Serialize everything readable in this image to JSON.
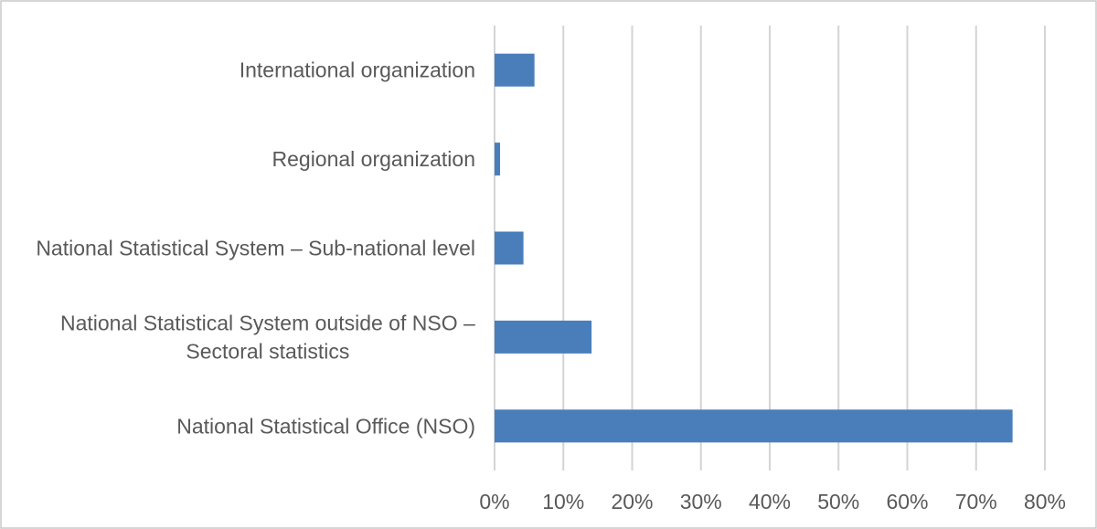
{
  "chart_data": {
    "type": "bar",
    "orientation": "horizontal",
    "title": "",
    "xlabel": "",
    "ylabel": "",
    "categories": [
      [
        "International organization"
      ],
      [
        "Regional organization"
      ],
      [
        "National Statistical System – Sub-national level"
      ],
      [
        "National Statistical System outside of NSO –",
        "Sectoral statistics"
      ],
      [
        "National Statistical Office (NSO)"
      ]
    ],
    "values": [
      5.8,
      0.8,
      4.2,
      14.1,
      75.3
    ],
    "xlim": [
      0,
      80
    ],
    "ticks": [
      0,
      10,
      20,
      30,
      40,
      50,
      60,
      70,
      80
    ],
    "tick_labels": [
      "0%",
      "10%",
      "20%",
      "30%",
      "40%",
      "50%",
      "60%",
      "70%",
      "80%"
    ],
    "bar_color": "#4a7ebb",
    "grid": true,
    "legend": "none"
  }
}
